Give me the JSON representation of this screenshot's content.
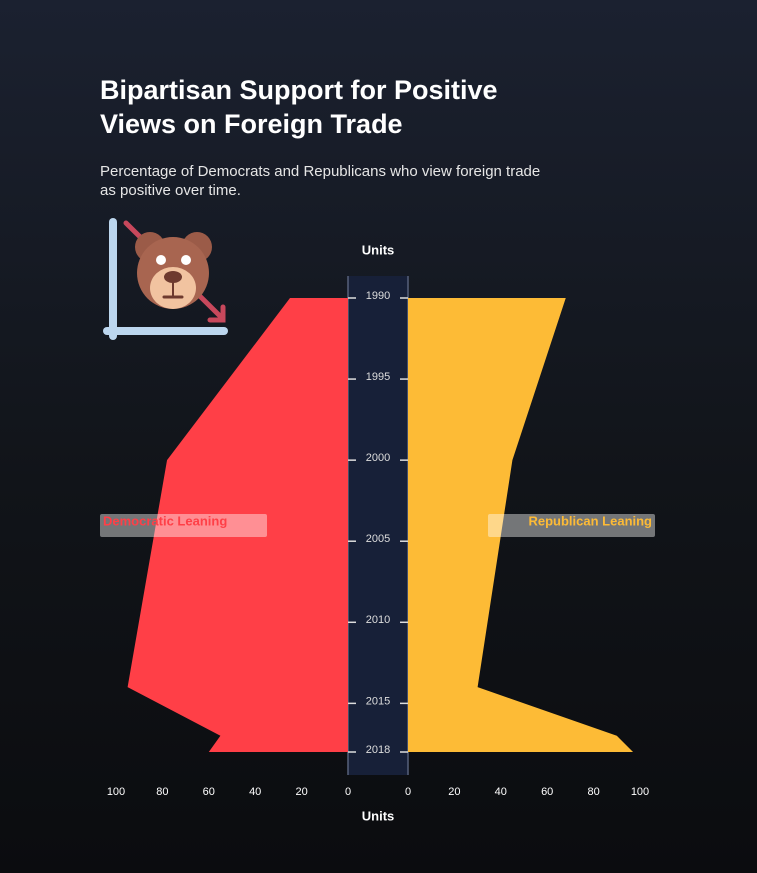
{
  "chart_data": {
    "type": "butterfly",
    "title": "Bipartisan Support for Positive Views on Foreign Trade",
    "subtitle": "Percentage of Democrats and Republicans who view foreign trade as positive over time.",
    "xlabel": "Units",
    "ylabel": "Units",
    "x": [
      1990,
      2000,
      2014,
      2017,
      2018
    ],
    "series": [
      {
        "name": "Democratic Leaning",
        "color": "#ff3f47",
        "values": [
          25,
          78,
          95,
          55,
          60
        ]
      },
      {
        "name": "Republican Leaning",
        "color": "#fdbb36",
        "values": [
          68,
          45,
          30,
          90,
          97
        ]
      }
    ],
    "xlim": [
      0,
      100
    ],
    "xticks": [
      0,
      20,
      40,
      60,
      80,
      100
    ],
    "ylim": [
      1990,
      2018
    ],
    "yticks": [
      1990,
      1995,
      2000,
      2005,
      2010,
      2015,
      2018
    ]
  }
}
